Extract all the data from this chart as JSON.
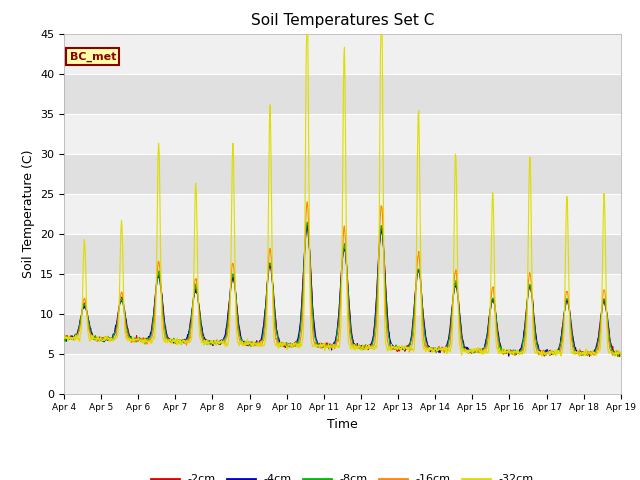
{
  "title": "Soil Temperatures Set C",
  "xlabel": "Time",
  "ylabel": "Soil Temperature (C)",
  "ylim": [
    0,
    45
  ],
  "annotation": "BC_met",
  "legend_labels": [
    "-2cm",
    "-4cm",
    "-8cm",
    "-16cm",
    "-32cm"
  ],
  "line_colors": [
    "#dd0000",
    "#0000cc",
    "#00bb00",
    "#ff8800",
    "#dddd00"
  ],
  "fig_bg": "#ffffff",
  "plot_bg_light": "#f0f0f0",
  "plot_bg_dark": "#e0e0e0",
  "grid_color": "#ffffff",
  "n_points": 960,
  "x_tick_labels": [
    "Apr 4",
    "Apr 5",
    "Apr 6",
    "Apr 7",
    "Apr 8",
    "Apr 9",
    "Apr 10",
    "Apr 11",
    "Apr 12",
    "Apr 13",
    "Apr 14",
    "Apr 15",
    "Apr 16",
    "Apr 17",
    "Apr 18",
    "Apr 19"
  ],
  "yticks": [
    0,
    5,
    10,
    15,
    20,
    25,
    30,
    35,
    40,
    45
  ]
}
